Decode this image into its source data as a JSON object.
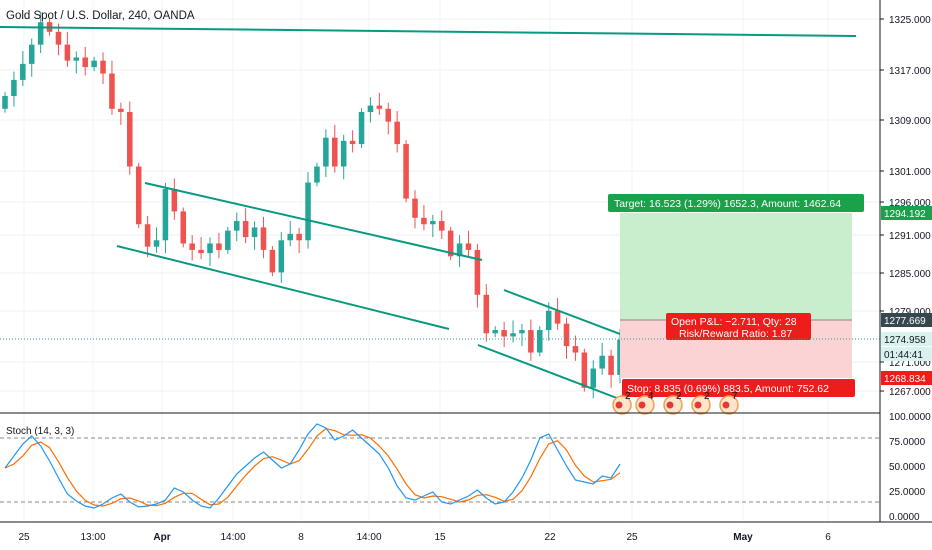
{
  "header": {
    "title": "Gold Spot / U.S. Dollar, 240, OANDA"
  },
  "indicator": {
    "label": "Stoch (14, 3, 3)",
    "yticks": [
      "100.0000",
      "75.0000",
      "50.0000",
      "25.0000",
      "0.0000"
    ],
    "k_color": "#2196f3",
    "d_color": "#ff6d00"
  },
  "colors": {
    "up": "#26a69a",
    "down": "#ef5350",
    "trendline": "#089981",
    "target_bg": "#c8eecd",
    "stop_bg": "#fbd3d4",
    "target_label": "#1aa14a",
    "stop_label": "#ef1c1c",
    "entry_label": "#ef1c1c"
  },
  "price_axis": {
    "ticks": [
      "1325.000",
      "1317.000",
      "1309.000",
      "1301.000",
      "1296.000",
      "1291.000",
      "1285.000",
      "1279.000",
      "1271.000",
      "1267.000"
    ],
    "labels": [
      {
        "text": "1294.192",
        "style": "green"
      },
      {
        "text": "1277.669",
        "style": "dark"
      },
      {
        "text": "1274.958",
        "style": "teal"
      },
      {
        "text": "01:44:41",
        "style": "teal"
      },
      {
        "text": "1268.834",
        "style": "red"
      }
    ]
  },
  "time_axis": {
    "ticks": [
      "25",
      "13:00",
      "Apr",
      "14:00",
      "8",
      "14:00",
      "15",
      "22",
      "25",
      "May",
      "6"
    ]
  },
  "position": {
    "target_text": "Target: 16.523 (1.29%) 1652.3, Amount: 1462.64",
    "pnl_text": "Open P&L: −2.711, Qty: 28",
    "rr_text": "Risk/Reward Ratio: 1.87",
    "stop_text": "Stop: 8.835 (0.69%) 883.5, Amount: 752.62",
    "entry": 1277.669,
    "target": 1294.192,
    "stop": 1268.834
  },
  "events": [
    "2",
    "4",
    "2",
    "2",
    "7"
  ],
  "chart_data": {
    "type": "candlestick",
    "title": "Gold Spot / U.S. Dollar, 240, OANDA",
    "ylim": [
      1263,
      1328
    ],
    "series": [
      {
        "name": "close",
        "values": [
          1313,
          1315.5,
          1318,
          1321,
          1324.5,
          1323,
          1321,
          1318.5,
          1319,
          1317.5,
          1318.5,
          1316.5,
          1311,
          1310.5,
          1302,
          1293,
          1289.5,
          1290.5,
          1298.5,
          1295,
          1290,
          1289,
          1288.5,
          1290,
          1289,
          1292,
          1293.5,
          1291,
          1292.5,
          1289,
          1285.5,
          1290.5,
          1291.5,
          1290.5,
          1299.5,
          1302,
          1306.5,
          1302,
          1306,
          1305.5,
          1310.5,
          1311.5,
          1311,
          1309,
          1305.5,
          1297,
          1294,
          1293,
          1293.5,
          1292,
          1288,
          1290,
          1289,
          1282,
          1276,
          1276.5,
          1275.5,
          1276,
          1276.5,
          1273,
          1276.5,
          1279.5,
          1277.5,
          1274,
          1273,
          1267.5,
          1270.5,
          1272.5,
          1269.5,
          1275
        ]
      }
    ],
    "overlays": [
      "upper-horizontal-trendline",
      "descending-channel",
      "short-descending-channel",
      "long-position-tool"
    ]
  }
}
